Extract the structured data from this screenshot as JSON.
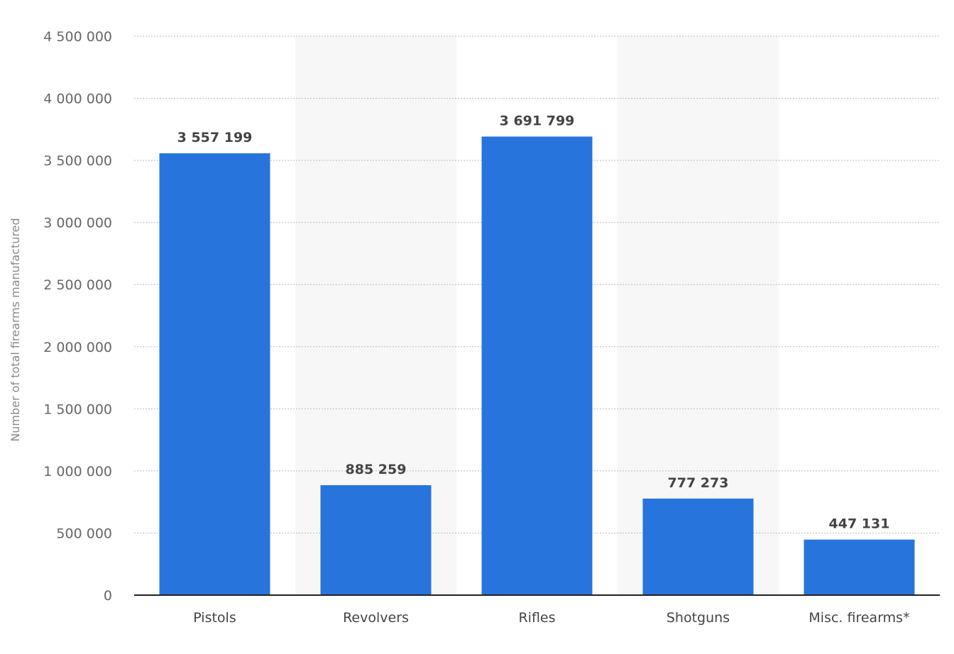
{
  "chart_data": {
    "type": "bar",
    "categories": [
      "Pistols",
      "Revolvers",
      "Rifles",
      "Shotguns",
      "Misc. firearms*"
    ],
    "values": [
      3557199,
      885259,
      3691799,
      777273,
      447131
    ],
    "value_labels": [
      "3 557 199",
      "885 259",
      "3 691 799",
      "777 273",
      "447 131"
    ],
    "title": "",
    "xlabel": "",
    "ylabel": "Number of total firearms manufactured",
    "ylim": [
      0,
      4500000
    ],
    "yticks": [
      0,
      500000,
      1000000,
      1500000,
      2000000,
      2500000,
      3000000,
      3500000,
      4000000,
      4500000
    ],
    "ytick_labels": [
      "0",
      "500 000",
      "1 000 000",
      "1 500 000",
      "2 000 000",
      "2 500 000",
      "3 000 000",
      "3 500 000",
      "4 000 000",
      "4 500 000"
    ],
    "grid": true,
    "bar_color": "#2775dc",
    "alternate_band_color": "#f7f7f7"
  }
}
